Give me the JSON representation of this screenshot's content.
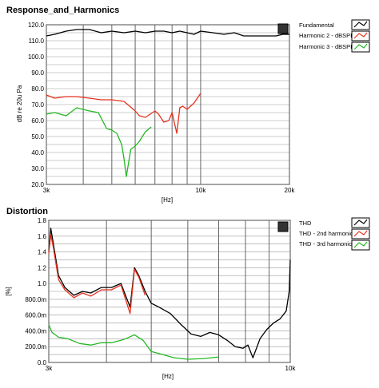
{
  "chart_data": [
    {
      "type": "line",
      "title": "Response_and_Harmonics",
      "xlabel": "[Hz]",
      "ylabel": "dB re 20u Pa",
      "xscale": "log",
      "xlim": [
        3000,
        20000
      ],
      "ylim": [
        20,
        120
      ],
      "xtick_labels": [
        "3k",
        "10k",
        "20k"
      ],
      "ytick_labels": [
        "120.0",
        "110.0",
        "100.0",
        "90.0",
        "80.0",
        "70.0",
        "60.0",
        "50.0",
        "40.0",
        "30.0",
        "20.0"
      ],
      "grid": true,
      "legend_position": "right",
      "series": [
        {
          "name": "Fundamental",
          "color": "#000000",
          "x": [
            3000,
            3200,
            3500,
            3800,
            4200,
            4600,
            5000,
            5500,
            6000,
            6500,
            7000,
            7500,
            8000,
            8500,
            9000,
            9500,
            10000,
            11000,
            12000,
            13000,
            14000,
            15000,
            16000,
            17000,
            18000,
            19000,
            20000
          ],
          "y": [
            113,
            114,
            116,
            117,
            117,
            115,
            116,
            115,
            116,
            115,
            116,
            116,
            115,
            116,
            115,
            114,
            116,
            115,
            114,
            115,
            113,
            113,
            113,
            113,
            113,
            114,
            114
          ]
        },
        {
          "name": "Harmonic 2 - dBSPL",
          "color": "#e8321e",
          "x": [
            3000,
            3200,
            3500,
            3800,
            4200,
            4600,
            5000,
            5500,
            6000,
            6200,
            6500,
            7000,
            7200,
            7500,
            7800,
            8000,
            8300,
            8500,
            8700,
            9000,
            9500,
            10000
          ],
          "y": [
            76,
            74,
            75,
            75,
            74,
            73,
            73,
            72,
            66,
            63,
            62,
            66,
            64,
            59,
            60,
            65,
            52,
            68,
            69,
            67,
            71,
            77
          ]
        },
        {
          "name": "Harmonic 3 - dBSPL",
          "color": "#22b822",
          "x": [
            3000,
            3200,
            3500,
            3800,
            4200,
            4500,
            4800,
            5000,
            5200,
            5400,
            5500,
            5600,
            5800,
            6000,
            6200,
            6500,
            6800
          ],
          "y": [
            64,
            65,
            63,
            68,
            66,
            65,
            55,
            54,
            52,
            45,
            36,
            25,
            42,
            44,
            47,
            53,
            56
          ]
        }
      ]
    },
    {
      "type": "line",
      "title": "Distortion",
      "xlabel": "[Hz]",
      "ylabel": "[%]",
      "xscale": "log",
      "xlim": [
        3000,
        10000
      ],
      "ylim": [
        0,
        1.8
      ],
      "xtick_labels": [
        "3k",
        "10k"
      ],
      "ytick_labels": [
        "1.8",
        "1.6",
        "1.4",
        "1.2",
        "1.0",
        "800.0m",
        "600.0m",
        "400.0m",
        "200.0m",
        "0.0"
      ],
      "grid": true,
      "legend_position": "right",
      "series": [
        {
          "name": "THD",
          "color": "#000000",
          "x": [
            3000,
            3030,
            3070,
            3150,
            3250,
            3400,
            3550,
            3700,
            3900,
            4100,
            4300,
            4500,
            4600,
            4700,
            4850,
            5000,
            5200,
            5500,
            5800,
            6100,
            6400,
            6700,
            7000,
            7300,
            7600,
            7900,
            8100,
            8300,
            8600,
            8900,
            9200,
            9500,
            9800,
            9950,
            10000
          ],
          "y": [
            1.4,
            1.7,
            1.5,
            1.1,
            0.95,
            0.85,
            0.9,
            0.88,
            0.95,
            0.95,
            1.0,
            0.7,
            1.2,
            1.1,
            0.9,
            0.75,
            0.7,
            0.62,
            0.48,
            0.36,
            0.33,
            0.38,
            0.35,
            0.28,
            0.2,
            0.18,
            0.22,
            0.06,
            0.3,
            0.42,
            0.5,
            0.55,
            0.65,
            0.9,
            1.3
          ]
        },
        {
          "name": "THD - 2nd harmonic",
          "color": "#e8321e",
          "x": [
            3000,
            3030,
            3070,
            3150,
            3250,
            3400,
            3550,
            3700,
            3900,
            4100,
            4300,
            4500,
            4600,
            4700,
            4850
          ],
          "y": [
            1.38,
            1.62,
            1.45,
            1.05,
            0.92,
            0.82,
            0.88,
            0.84,
            0.92,
            0.92,
            0.98,
            0.62,
            1.18,
            1.08,
            0.85
          ]
        },
        {
          "name": "THD - 3rd harmonic",
          "color": "#22b822",
          "x": [
            3000,
            3050,
            3150,
            3300,
            3500,
            3700,
            3900,
            4100,
            4300,
            4400,
            4600,
            4800,
            5000,
            5300,
            5600,
            6000,
            6500,
            7000
          ],
          "y": [
            0.48,
            0.38,
            0.32,
            0.3,
            0.24,
            0.22,
            0.25,
            0.25,
            0.28,
            0.3,
            0.35,
            0.28,
            0.14,
            0.1,
            0.06,
            0.04,
            0.05,
            0.07
          ]
        }
      ]
    }
  ]
}
